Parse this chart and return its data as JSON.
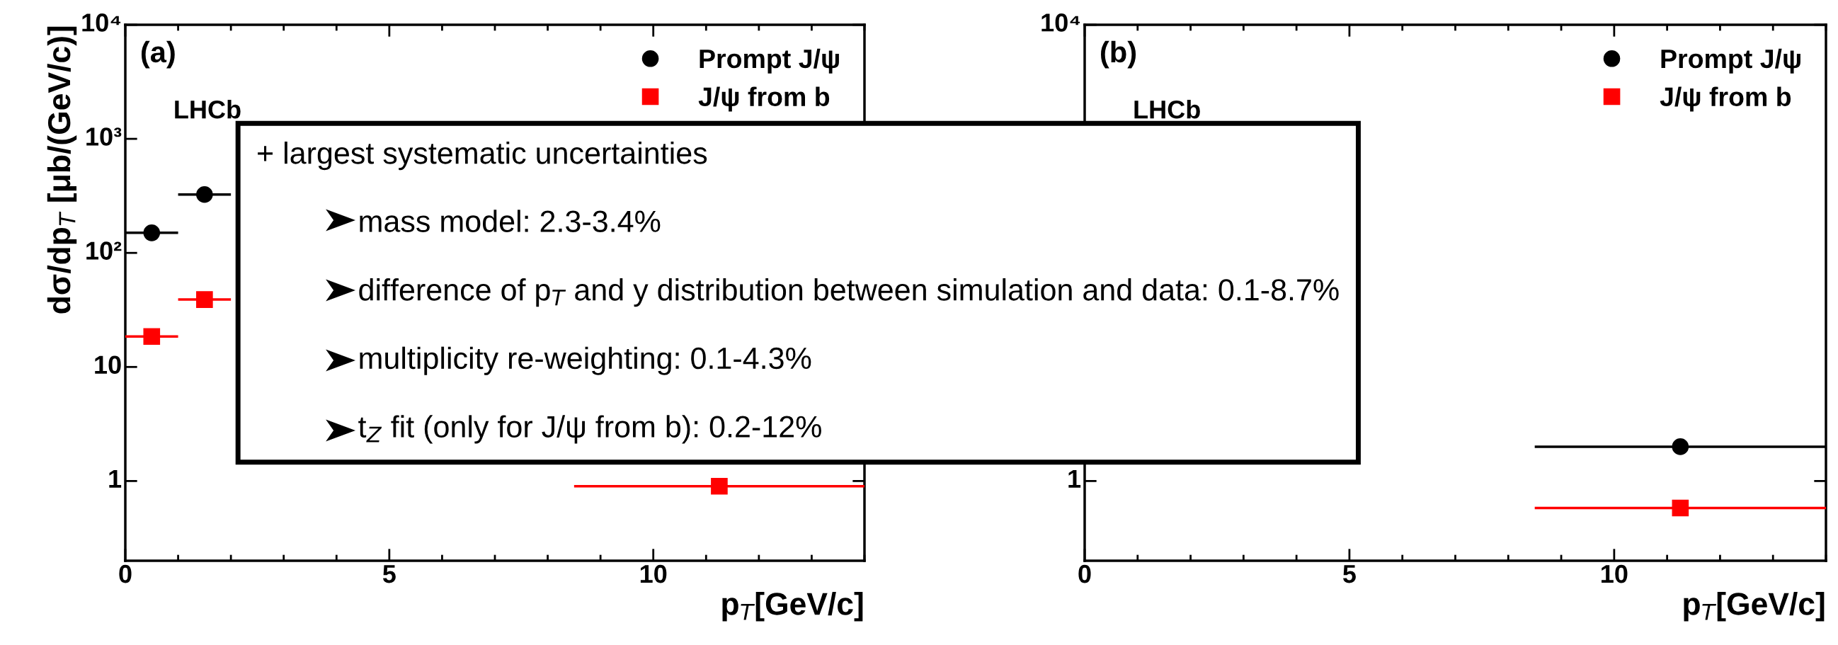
{
  "chart_data": [
    {
      "type": "scatter",
      "xlabel": "p$_{T}$[GeV/c]",
      "ylabel": "dσ/dp$_{T}$ [μb/(GeV/c)]",
      "log": "y",
      "xlim": [
        0,
        14
      ],
      "ylim": [
        0.2,
        10000
      ],
      "xticks": [
        0,
        5,
        10
      ],
      "yticks": [
        1,
        10,
        {
          "value": 100,
          "label": "10²"
        },
        {
          "value": 1000,
          "label": "10³"
        },
        {
          "value": 10000,
          "label": "10⁴"
        }
      ],
      "legend": "top right",
      "grid": false,
      "annotations": [
        "(a)",
        "LHCb",
        "+ largest systematic uncertainties",
        "mass model: 2.3-3.4%",
        "difference of p$_{T}$ and y distribution between simulation and data: 0.1-8.7%",
        "multiplicity re-weighting: 0.1-4.3%",
        "t$_{Z}$ fit (only for J/ψ from b): 0.2-12%"
      ],
      "series": [
        {
          "name": "Prompt J/ψ",
          "color": "#000000",
          "marker": "circle",
          "x": [
            0.5,
            1.5
          ],
          "values": [
            150,
            325
          ],
          "xerrors": [
            0.5,
            0.5
          ]
        },
        {
          "name": "J/ψ from b",
          "color": "#ff0000",
          "marker": "square",
          "x": [
            0.5,
            1.5,
            11.25
          ],
          "values": [
            18.5,
            39,
            0.9
          ],
          "xerrors": [
            0.5,
            0.5,
            2.75
          ]
        }
      ]
    },
    {
      "type": "scatter",
      "xlabel": "p$_{T}$[GeV/c]",
      "log": "y",
      "xlim": [
        0,
        14
      ],
      "ylim": [
        0.2,
        10000
      ],
      "xticks": [
        0,
        5,
        10
      ],
      "yticks": [
        1,
        {
          "value": 10000,
          "label": "10⁴"
        }
      ],
      "legend": "top right",
      "grid": false,
      "annotations": [
        "(b)",
        "LHCb"
      ],
      "series": [
        {
          "name": "Prompt J/ψ",
          "color": "#000000",
          "marker": "circle",
          "x": [
            11.25
          ],
          "values": [
            2.0
          ],
          "xerrors": [
            2.75
          ]
        },
        {
          "name": "J/ψ from b",
          "color": "#ff0000",
          "marker": "square",
          "x": [
            11.25
          ],
          "values": [
            0.58
          ],
          "xerrors": [
            2.75
          ],
          "errors": [
            0.05
          ]
        }
      ]
    }
  ]
}
